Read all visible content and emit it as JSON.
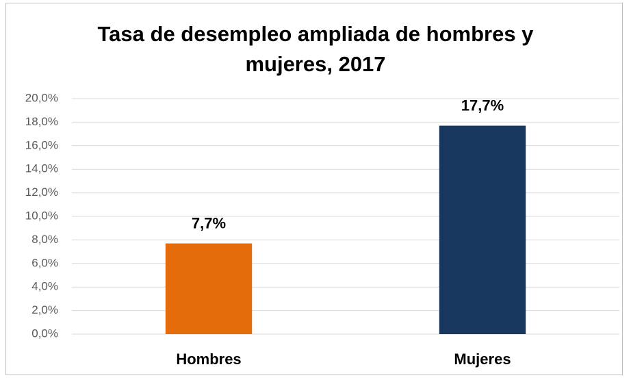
{
  "chart_data": {
    "type": "bar",
    "title": "Tasa de desempleo ampliada de hombres y mujeres, 2017",
    "categories": [
      "Hombres",
      "Mujeres"
    ],
    "values": [
      7.7,
      17.7
    ],
    "value_labels": [
      "7,7%",
      "17,7%"
    ],
    "colors": [
      "#e46c0a",
      "#17375e"
    ],
    "ylim": [
      0,
      20
    ],
    "yticks": [
      {
        "value": 0,
        "label": "0,0%"
      },
      {
        "value": 2,
        "label": "2,0%"
      },
      {
        "value": 4,
        "label": "4,0%"
      },
      {
        "value": 6,
        "label": "6,0%"
      },
      {
        "value": 8,
        "label": "8,0%"
      },
      {
        "value": 10,
        "label": "10,0%"
      },
      {
        "value": 12,
        "label": "12,0%"
      },
      {
        "value": 14,
        "label": "14,0%"
      },
      {
        "value": 16,
        "label": "16,0%"
      },
      {
        "value": 18,
        "label": "18,0%"
      },
      {
        "value": 20,
        "label": "20,0%"
      }
    ],
    "grid": true
  }
}
